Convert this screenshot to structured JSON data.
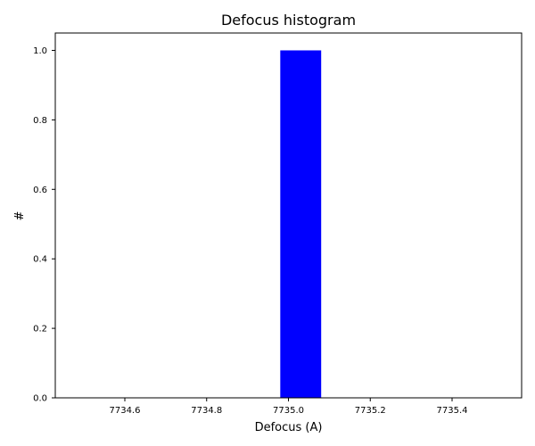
{
  "chart_data": {
    "type": "bar",
    "title": "Defocus histogram",
    "xlabel": "Defocus (A)",
    "ylabel": "#",
    "xlim": [
      7734.43,
      7735.57
    ],
    "ylim": [
      0,
      1.05
    ],
    "xticks": [
      7734.6,
      7734.8,
      7735.0,
      7735.2,
      7735.4
    ],
    "xtick_labels": [
      "7734.6",
      "7734.8",
      "7735.0",
      "7735.2",
      "7735.4"
    ],
    "yticks": [
      0.0,
      0.2,
      0.4,
      0.6,
      0.8,
      1.0
    ],
    "ytick_labels": [
      "0.0",
      "0.2",
      "0.4",
      "0.6",
      "0.8",
      "1.0"
    ],
    "bins": [
      {
        "x0": 7734.98,
        "x1": 7735.08,
        "count": 1.0
      }
    ],
    "bar_color": "#0000ff",
    "grid": false,
    "legend": "none"
  }
}
